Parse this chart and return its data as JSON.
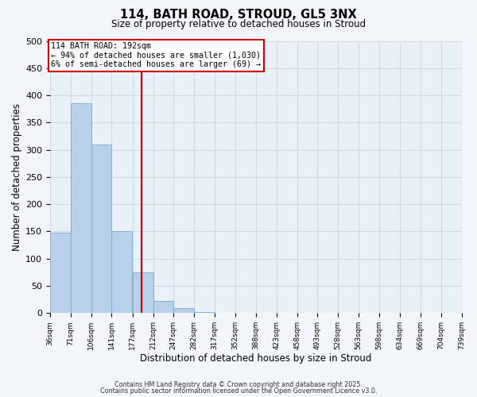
{
  "title": "114, BATH ROAD, STROUD, GL5 3NX",
  "subtitle": "Size of property relative to detached houses in Stroud",
  "xlabel": "Distribution of detached houses by size in Stroud",
  "ylabel": "Number of detached properties",
  "bar_left_edges": [
    36,
    71,
    106,
    141,
    177,
    212,
    247,
    282,
    317,
    352,
    388,
    423,
    458,
    493,
    528,
    563,
    598,
    634,
    669,
    704
  ],
  "bar_heights": [
    147,
    385,
    310,
    150,
    75,
    22,
    9,
    2,
    0,
    0,
    0,
    0,
    0,
    0,
    0,
    0,
    0,
    0,
    0,
    1
  ],
  "bin_width": 35,
  "bar_color": "#b8d0e8",
  "bar_edge_color": "#7aaacf",
  "grid_color": "#d0d8e4",
  "vline_x": 192,
  "vline_color": "#cc0000",
  "annotation_text_line1": "114 BATH ROAD: 192sqm",
  "annotation_text_line2": "← 94% of detached houses are smaller (1,030)",
  "annotation_text_line3": "6% of semi-detached houses are larger (69) →",
  "ylim": [
    0,
    500
  ],
  "yticks": [
    0,
    50,
    100,
    150,
    200,
    250,
    300,
    350,
    400,
    450,
    500
  ],
  "xtick_labels": [
    "36sqm",
    "71sqm",
    "106sqm",
    "141sqm",
    "177sqm",
    "212sqm",
    "247sqm",
    "282sqm",
    "317sqm",
    "352sqm",
    "388sqm",
    "423sqm",
    "458sqm",
    "493sqm",
    "528sqm",
    "563sqm",
    "598sqm",
    "634sqm",
    "669sqm",
    "704sqm",
    "739sqm"
  ],
  "footer_line1": "Contains HM Land Registry data © Crown copyright and database right 2025.",
  "footer_line2": "Contains public sector information licensed under the Open Government Licence v3.0.",
  "background_color": "#f2f5f9",
  "plot_bg_color": "#eaf0f7"
}
